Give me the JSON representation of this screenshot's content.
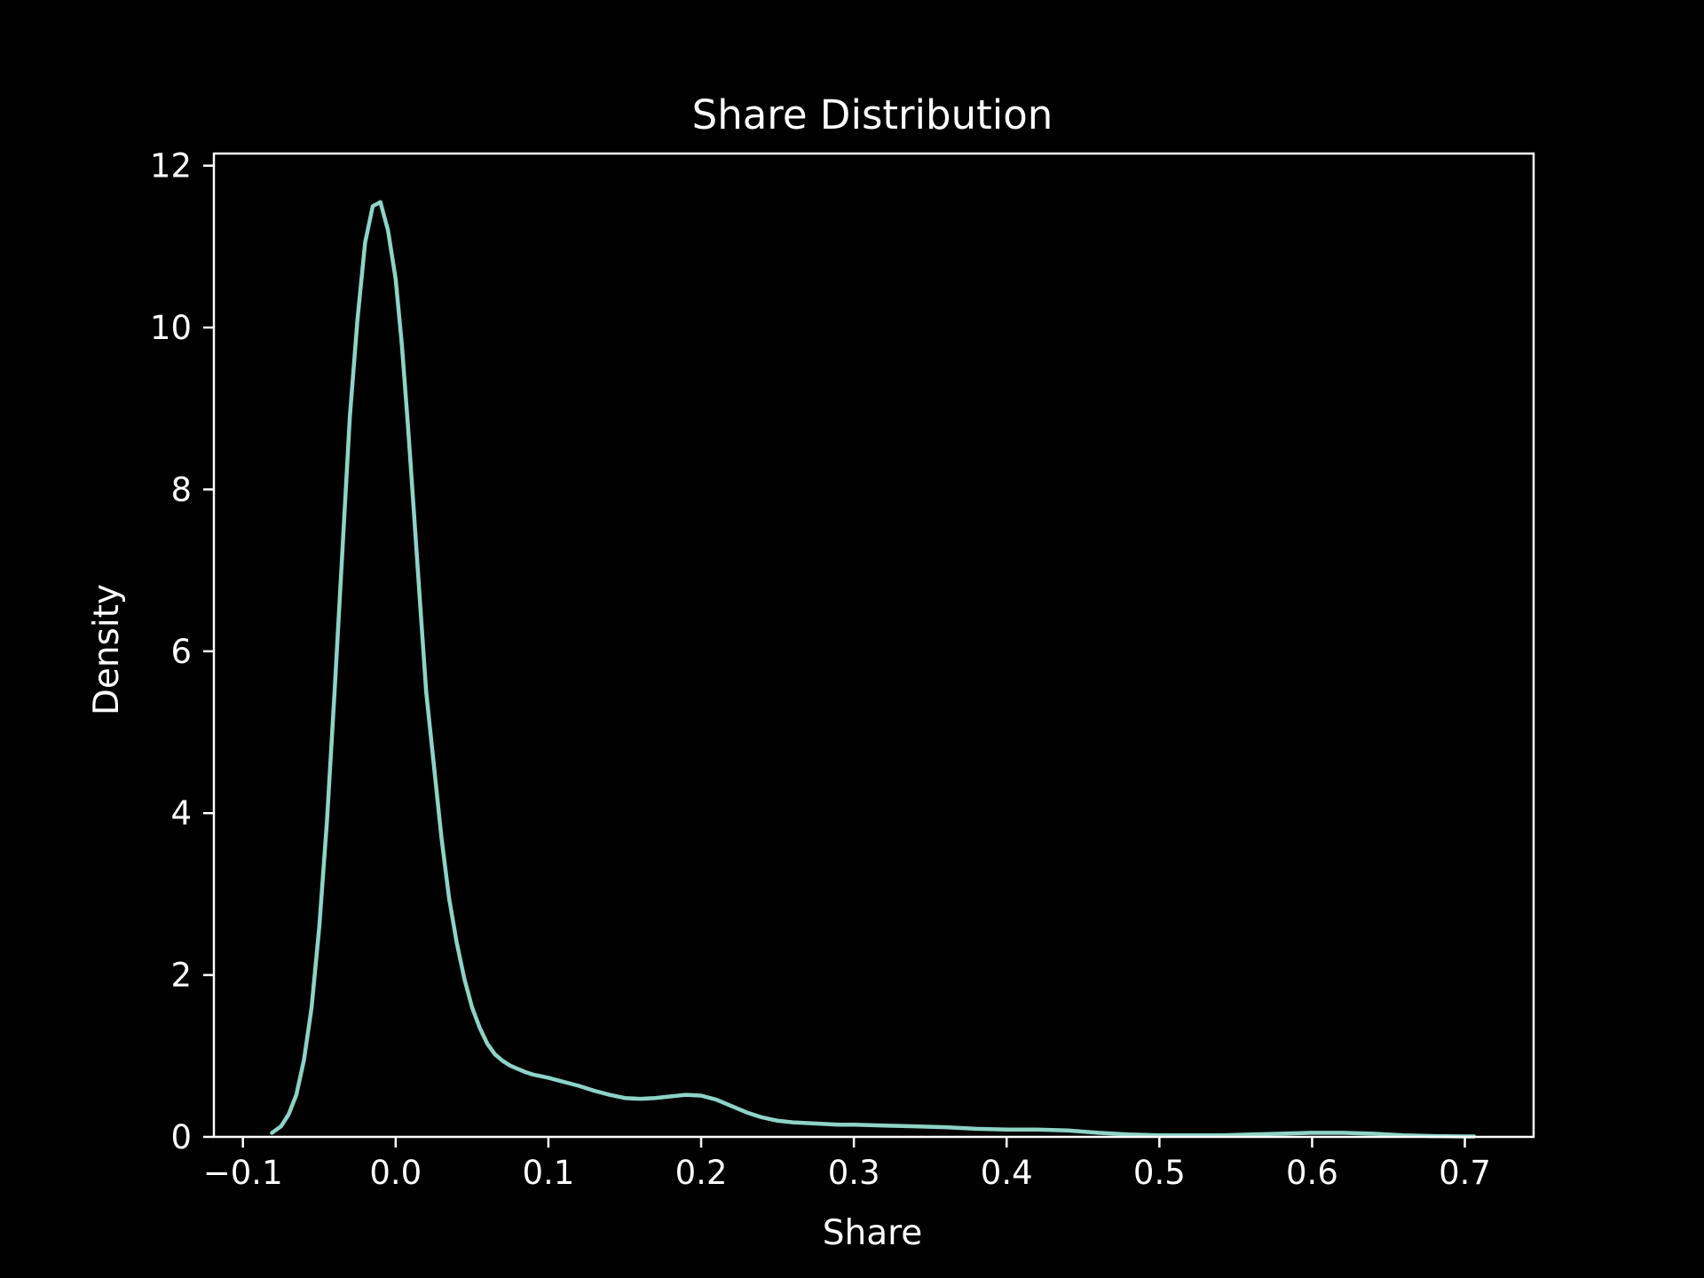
{
  "chart_data": {
    "type": "line",
    "title": "Share Distribution",
    "xlabel": "Share",
    "ylabel": "Density",
    "xlim": [
      -0.119,
      0.745
    ],
    "ylim": [
      0,
      12.15
    ],
    "x_ticks": [
      -0.1,
      0.0,
      0.1,
      0.2,
      0.3,
      0.4,
      0.5,
      0.6,
      0.7
    ],
    "x_tick_labels": [
      "−0.1",
      "0.0",
      "0.1",
      "0.2",
      "0.3",
      "0.4",
      "0.5",
      "0.6",
      "0.7"
    ],
    "y_ticks": [
      0,
      2,
      4,
      6,
      8,
      10,
      12
    ],
    "y_tick_labels": [
      "0",
      "2",
      "4",
      "6",
      "8",
      "10",
      "12"
    ],
    "grid": false,
    "background": "#000000",
    "axes_color": "#ffffff",
    "series": [
      {
        "color": "#8dd3c7",
        "x": [
          -0.081,
          -0.075,
          -0.07,
          -0.065,
          -0.06,
          -0.055,
          -0.05,
          -0.045,
          -0.04,
          -0.035,
          -0.03,
          -0.025,
          -0.02,
          -0.015,
          -0.01,
          -0.005,
          0.0,
          0.004,
          0.008,
          0.012,
          0.016,
          0.02,
          0.025,
          0.03,
          0.035,
          0.04,
          0.045,
          0.05,
          0.055,
          0.06,
          0.065,
          0.07,
          0.075,
          0.08,
          0.085,
          0.09,
          0.095,
          0.1,
          0.11,
          0.12,
          0.13,
          0.14,
          0.15,
          0.16,
          0.17,
          0.18,
          0.19,
          0.2,
          0.21,
          0.22,
          0.23,
          0.24,
          0.25,
          0.26,
          0.27,
          0.28,
          0.29,
          0.3,
          0.32,
          0.34,
          0.36,
          0.38,
          0.4,
          0.42,
          0.44,
          0.46,
          0.48,
          0.5,
          0.52,
          0.54,
          0.56,
          0.58,
          0.6,
          0.62,
          0.64,
          0.66,
          0.68,
          0.7,
          0.706
        ],
        "y": [
          0.05,
          0.13,
          0.28,
          0.52,
          0.95,
          1.6,
          2.6,
          3.9,
          5.5,
          7.2,
          8.9,
          10.1,
          11.05,
          11.5,
          11.55,
          11.2,
          10.6,
          9.8,
          8.8,
          7.7,
          6.6,
          5.5,
          4.6,
          3.7,
          2.95,
          2.4,
          1.95,
          1.6,
          1.35,
          1.15,
          1.02,
          0.94,
          0.88,
          0.84,
          0.8,
          0.77,
          0.75,
          0.73,
          0.68,
          0.63,
          0.57,
          0.52,
          0.48,
          0.47,
          0.48,
          0.5,
          0.52,
          0.51,
          0.46,
          0.38,
          0.3,
          0.24,
          0.2,
          0.18,
          0.17,
          0.16,
          0.15,
          0.15,
          0.14,
          0.13,
          0.12,
          0.1,
          0.09,
          0.09,
          0.08,
          0.05,
          0.03,
          0.02,
          0.02,
          0.02,
          0.03,
          0.04,
          0.05,
          0.05,
          0.04,
          0.02,
          0.01,
          0.005,
          0.005
        ]
      }
    ]
  }
}
